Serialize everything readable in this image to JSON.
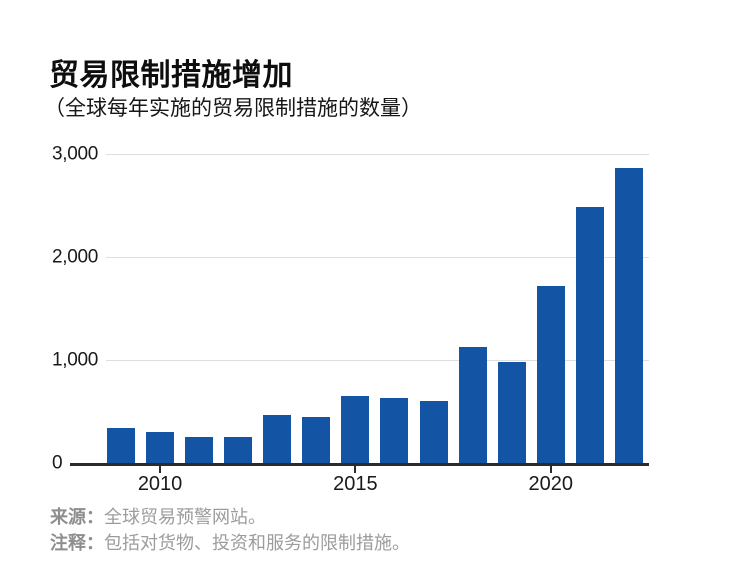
{
  "title": "贸易限制措施增加",
  "subtitle": "（全球每年实施的贸易限制措施的数量）",
  "footer": {
    "source_label": "来源：",
    "source_text": "全球贸易预警网站。",
    "note_label": "注释：",
    "note_text": "包括对货物、投资和服务的限制措施。"
  },
  "colors": {
    "bar": "#1355A4",
    "gridline": "#dedede",
    "axis": "#2b2b2b",
    "footer_text": "#9c9c9c"
  },
  "chart_data": {
    "type": "bar",
    "title": "贸易限制措施增加",
    "subtitle": "（全球每年实施的贸易限制措施的数量）",
    "categories": [
      2009,
      2010,
      2011,
      2012,
      2013,
      2014,
      2015,
      2016,
      2017,
      2018,
      2019,
      2020,
      2021,
      2022
    ],
    "values": [
      340,
      300,
      250,
      250,
      470,
      450,
      650,
      630,
      600,
      1130,
      980,
      1720,
      2490,
      2860
    ],
    "xlabel": "",
    "ylabel": "",
    "ylim": [
      0,
      3000
    ],
    "yticks": [
      0,
      1000,
      2000,
      3000
    ],
    "ytick_labels": [
      "0",
      "1,000",
      "2,000",
      "3,000"
    ],
    "xticks": [
      2010,
      2015,
      2020
    ],
    "xtick_labels": [
      "2010",
      "2015",
      "2020"
    ],
    "grid": "horizontal",
    "legend": "none",
    "bar_color": "#1355A4"
  }
}
